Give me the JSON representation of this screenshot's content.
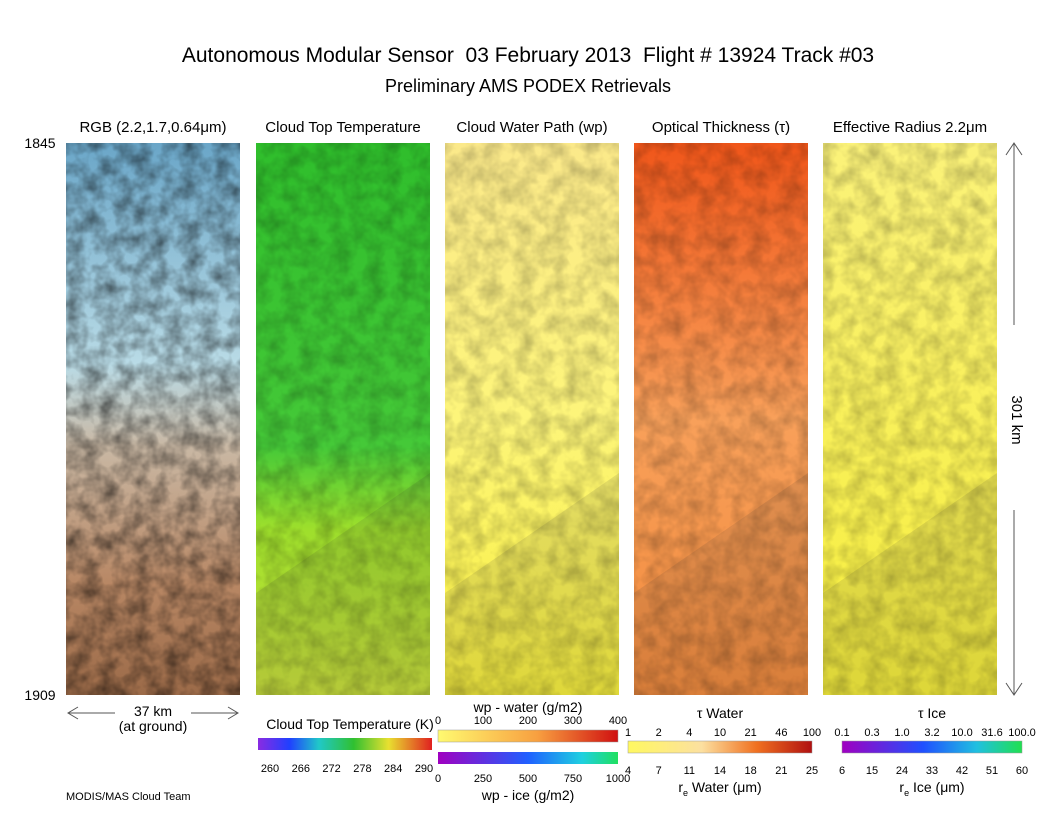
{
  "header": {
    "title": "Autonomous Modular Sensor  03 February 2013  Flight # 13924 Track #03",
    "subtitle": "Preliminary AMS PODEX Retrievals"
  },
  "panels": [
    {
      "title": "RGB (2.2,1.7,0.64μm)"
    },
    {
      "title": "Cloud Top Temperature"
    },
    {
      "title": "Cloud Water Path (wp)"
    },
    {
      "title": "Optical Thickness (τ)"
    },
    {
      "title": "Effective Radius 2.2μm"
    }
  ],
  "time_labels": {
    "start": "1845",
    "end": "1909"
  },
  "scale": {
    "width": "37 km",
    "width_note": "(at ground)",
    "length": "301 km"
  },
  "colorbars": [
    {
      "title": "Cloud Top Temperature (K)",
      "bottom_ticks": [
        260,
        266,
        272,
        278,
        284,
        290
      ]
    },
    {
      "title": "wp - water (g/m2)",
      "top_ticks": [
        0,
        100,
        200,
        300,
        400
      ],
      "bottom_ticks": [
        0,
        250,
        500,
        750,
        1000
      ],
      "bottom_title": "wp - ice (g/m2)"
    },
    {
      "title": "τ Water",
      "top_ticks": [
        1,
        2,
        4,
        10,
        21,
        46,
        100
      ],
      "bottom_ticks": [
        4,
        7,
        11,
        14,
        18,
        21,
        25
      ],
      "bottom_title": {
        "symbol": "r",
        "subscript": "e",
        "text": " Water (μm)"
      }
    },
    {
      "title": "τ Ice",
      "top_ticks": [
        0.1,
        0.3,
        "1.0",
        3.2,
        "10.0",
        31.6,
        "100.0"
      ],
      "bottom_ticks": [
        6,
        15,
        24,
        33,
        42,
        51,
        60
      ],
      "bottom_title": {
        "symbol": "r",
        "subscript": "e",
        "text": " Ice (μm)"
      }
    }
  ],
  "credit": "MODIS/MAS Cloud Team"
}
